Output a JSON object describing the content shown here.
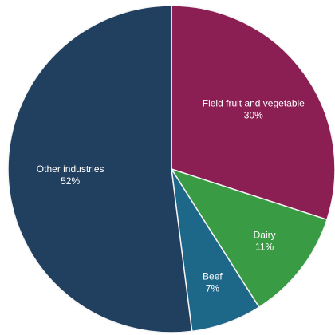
{
  "chart_data": {
    "type": "pie",
    "title": "",
    "slices": [
      {
        "category": "Field fruit and vegetable",
        "value_label": "30%",
        "value": 30,
        "color": "#8b1e52"
      },
      {
        "category": "Dairy",
        "value_label": "11%",
        "value": 11,
        "color": "#3a9b45"
      },
      {
        "category": "Beef",
        "value_label": "7%",
        "value": 7,
        "color": "#1d6789"
      },
      {
        "category": "Other industries",
        "value_label": "52%",
        "value": 52,
        "color": "#213f5f"
      }
    ],
    "legend": "none"
  }
}
